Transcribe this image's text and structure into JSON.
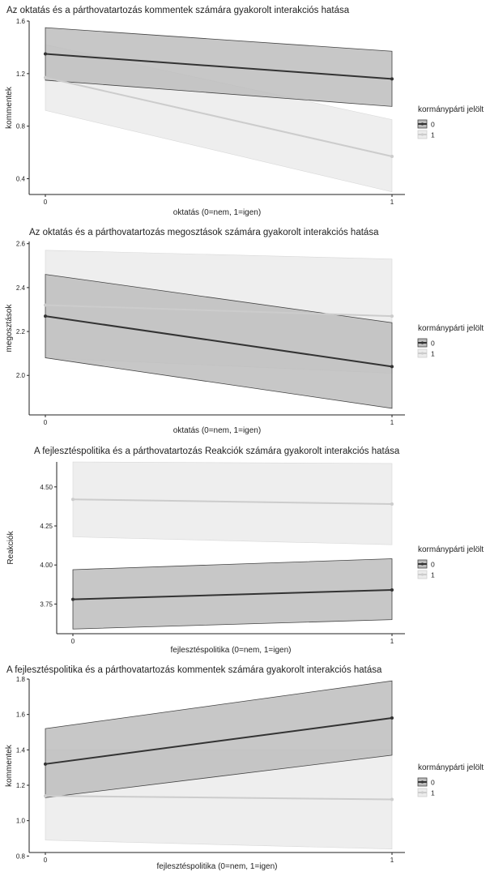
{
  "chart_data": [
    {
      "type": "line",
      "title": "Az oktatás és a párthovatartozás kommentek számára gyakorolt interakciós hatása",
      "xlabel": "oktatás (0=nem, 1=igen)",
      "ylabel": "kommentek",
      "x_ticks": [
        "0",
        "1"
      ],
      "y_ticks": [
        "0.4",
        "0.8",
        "1.2",
        "1.6"
      ],
      "ylim": [
        0.28,
        1.6
      ],
      "legend": {
        "title": "kormánypárti jelölt",
        "position": "right"
      },
      "series": [
        {
          "name": "0",
          "x": [
            0,
            1
          ],
          "y": [
            1.35,
            1.16
          ],
          "ci_low": [
            1.15,
            0.95
          ],
          "ci_high": [
            1.55,
            1.37
          ],
          "line_color": "#333333",
          "fill_color": "#bdbdbd"
        },
        {
          "name": "1",
          "x": [
            0,
            1
          ],
          "y": [
            1.17,
            0.57
          ],
          "ci_low": [
            0.92,
            0.3
          ],
          "ci_high": [
            1.42,
            0.85
          ],
          "line_color": "#cccccc",
          "fill_color": "#ececec"
        }
      ]
    },
    {
      "type": "line",
      "title": "Az oktatás és a párthovatartozás megosztások számára gyakorolt interakciós hatása",
      "xlabel": "oktatás (0=nem, 1=igen)",
      "ylabel": "megosztások",
      "x_ticks": [
        "0",
        "1"
      ],
      "y_ticks": [
        "2.0",
        "2.2",
        "2.4",
        "2.6"
      ],
      "ylim": [
        1.82,
        2.61
      ],
      "legend": {
        "title": "kormánypárti jelölt",
        "position": "right"
      },
      "series": [
        {
          "name": "0",
          "x": [
            0,
            1
          ],
          "y": [
            2.27,
            2.04
          ],
          "ci_low": [
            2.08,
            1.85
          ],
          "ci_high": [
            2.46,
            2.24
          ],
          "line_color": "#333333",
          "fill_color": "#bdbdbd"
        },
        {
          "name": "1",
          "x": [
            0,
            1
          ],
          "y": [
            2.32,
            2.27
          ],
          "ci_low": [
            2.08,
            2.01
          ],
          "ci_high": [
            2.57,
            2.53
          ],
          "line_color": "#cccccc",
          "fill_color": "#ececec"
        }
      ]
    },
    {
      "type": "line",
      "title": "A fejlesztéspolitika és a párthovatartozás Reakciók számára gyakorolt interakciós hatása",
      "xlabel": "fejlesztéspolitika (0=nem, 1=igen)",
      "ylabel": "Reakciók",
      "x_ticks": [
        "0",
        "1"
      ],
      "y_ticks": [
        "3.75",
        "4.00",
        "4.25",
        "4.50"
      ],
      "ylim": [
        3.56,
        4.66
      ],
      "legend": {
        "title": "kormánypárti jelölt",
        "position": "right"
      },
      "series": [
        {
          "name": "0",
          "x": [
            0,
            1
          ],
          "y": [
            3.78,
            3.84
          ],
          "ci_low": [
            3.59,
            3.65
          ],
          "ci_high": [
            3.97,
            4.04
          ],
          "line_color": "#333333",
          "fill_color": "#bdbdbd"
        },
        {
          "name": "1",
          "x": [
            0,
            1
          ],
          "y": [
            4.42,
            4.39
          ],
          "ci_low": [
            4.18,
            4.13
          ],
          "ci_high": [
            4.66,
            4.65
          ],
          "line_color": "#cccccc",
          "fill_color": "#ececec"
        }
      ]
    },
    {
      "type": "line",
      "title": "A fejlesztéspolitika és a párthovatartozás kommentek számára gyakorolt interakciós hatása",
      "xlabel": "fejlesztéspolitika (0=nem, 1=igen)",
      "ylabel": "kommentek",
      "x_ticks": [
        "0",
        "1"
      ],
      "y_ticks": [
        "0.8",
        "1.0",
        "1.2",
        "1.4",
        "1.6",
        "1.8"
      ],
      "ylim": [
        0.82,
        1.8
      ],
      "legend": {
        "title": "kormánypárti jelölt",
        "position": "right"
      },
      "series": [
        {
          "name": "0",
          "x": [
            0,
            1
          ],
          "y": [
            1.32,
            1.58
          ],
          "ci_low": [
            1.13,
            1.37
          ],
          "ci_high": [
            1.52,
            1.79
          ],
          "line_color": "#333333",
          "fill_color": "#bdbdbd"
        },
        {
          "name": "1",
          "x": [
            0,
            1
          ],
          "y": [
            1.14,
            1.12
          ],
          "ci_low": [
            0.89,
            0.84
          ],
          "ci_high": [
            1.4,
            1.4
          ],
          "line_color": "#cccccc",
          "fill_color": "#ececec"
        }
      ]
    }
  ]
}
